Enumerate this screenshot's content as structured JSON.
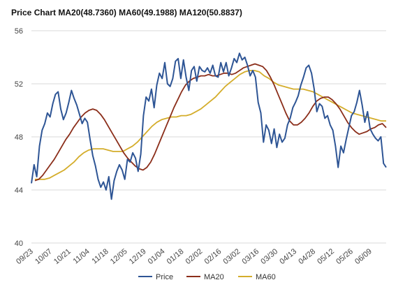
{
  "chart_data": {
    "type": "line",
    "title": "Price Chart MA20(48.7360) MA60(49.1988) MA120(50.8837)",
    "xlabel": "",
    "ylabel": "",
    "ylim": [
      40,
      56
    ],
    "yticks": [
      40,
      44,
      48,
      52,
      56
    ],
    "grid": true,
    "legend_position": "bottom",
    "x_tick_labels": [
      "09/23",
      "10/07",
      "10/21",
      "11/04",
      "11/18",
      "12/05",
      "12/19",
      "01/04",
      "01/18",
      "02/02",
      "02/16",
      "03/02",
      "03/16",
      "03/30",
      "04/13",
      "04/28",
      "05/12",
      "05/26",
      "06/09"
    ],
    "colors": {
      "Price": "#2e5595",
      "MA20": "#8b2e1a",
      "MA60": "#d4ad2b"
    },
    "series": [
      {
        "name": "Price",
        "values": [
          44.5,
          45.9,
          45,
          47.3,
          48.5,
          49,
          49.8,
          49.5,
          50.5,
          51.2,
          51.4,
          50.1,
          49.3,
          49.8,
          50.6,
          51.5,
          50.9,
          50.4,
          49.7,
          49,
          49.4,
          49.1,
          47.8,
          46.6,
          45.8,
          44.8,
          44.2,
          44.6,
          44,
          45,
          43.3,
          44.7,
          45.4,
          45.9,
          45.5,
          44.8,
          46.3,
          46.1,
          46.8,
          46.4,
          45.4,
          46.7,
          49.6,
          51,
          50.7,
          51.6,
          50.2,
          51.9,
          52.8,
          52.4,
          53.6,
          52,
          51.8,
          52.4,
          53.7,
          53.9,
          52.4,
          53.8,
          52.5,
          51.5,
          53,
          53.3,
          52.2,
          53.3,
          53,
          52.9,
          53.2,
          52.8,
          53.4,
          52.6,
          52.5,
          53.6,
          52.9,
          53.6,
          52.6,
          53.2,
          53.9,
          53.6,
          54.3,
          53.8,
          54,
          53.4,
          52.6,
          53,
          52.5,
          50.6,
          49.8,
          47.6,
          48.9,
          48.5,
          47.5,
          48.6,
          47.2,
          48.2,
          47.6,
          47.9,
          48.9,
          49.4,
          50.2,
          50.6,
          51.1,
          51.9,
          52.5,
          53.2,
          53.4,
          52.8,
          51.6,
          49.9,
          50.5,
          50.3,
          49.4,
          49.6,
          48.9,
          48.5,
          47.3,
          45.7,
          47.3,
          46.8,
          47.8,
          48.7,
          49.6,
          49.9,
          50.6,
          51.5,
          50.4,
          49.1,
          49.9,
          48.6,
          48.2,
          47.9,
          47.7,
          48,
          46,
          45.7
        ]
      },
      {
        "name": "MA20",
        "values": [
          44.7,
          44.8,
          45.1,
          45.5,
          45.9,
          46.3,
          46.8,
          47.3,
          47.8,
          48.2,
          48.7,
          49.1,
          49.5,
          49.8,
          50,
          50.1,
          50,
          49.7,
          49.3,
          48.8,
          48.3,
          47.8,
          47.3,
          46.8,
          46.4,
          46.1,
          45.8,
          45.6,
          45.5,
          45.7,
          46.1,
          46.7,
          47.4,
          48.1,
          48.8,
          49.5,
          50.2,
          50.8,
          51.4,
          51.9,
          52.2,
          52.4,
          52.5,
          52.6,
          52.6,
          52.7,
          52.6,
          52.6,
          52.7,
          52.8,
          52.8,
          52.7,
          52.8,
          53,
          53.2,
          53.3,
          53.4,
          53.5,
          53.4,
          53.3,
          53,
          52.5,
          51.9,
          51.2,
          50.5,
          49.8,
          49.2,
          48.9,
          48.9,
          49.1,
          49.4,
          49.8,
          50.3,
          50.7,
          50.9,
          51,
          51,
          50.8,
          50.5,
          50.1,
          49.6,
          49.1,
          48.7,
          48.4,
          48.2,
          48.3,
          48.4,
          48.6,
          48.7,
          48.9,
          49,
          48.7
        ]
      },
      {
        "name": "MA60",
        "values": [
          44.8,
          44.8,
          44.8,
          44.9,
          45.1,
          45.3,
          45.5,
          45.8,
          46.1,
          46.5,
          46.8,
          47,
          47.1,
          47.1,
          47.1,
          47,
          46.9,
          46.9,
          46.9,
          47.1,
          47.3,
          47.6,
          48,
          48.4,
          48.8,
          49.1,
          49.3,
          49.4,
          49.5,
          49.5,
          49.6,
          49.6,
          49.7,
          49.9,
          50.1,
          50.4,
          50.7,
          51,
          51.4,
          51.8,
          52.1,
          52.4,
          52.7,
          52.9,
          53,
          53,
          52.9,
          52.6,
          52.4,
          52.1,
          51.9,
          51.8,
          51.7,
          51.6,
          51.6,
          51.6,
          51.5,
          51.4,
          51.2,
          51,
          50.8,
          50.6,
          50.4,
          50.2,
          50,
          49.8,
          49.7,
          49.6,
          49.5,
          49.4,
          49.3,
          49.2,
          49.2
        ]
      }
    ]
  }
}
